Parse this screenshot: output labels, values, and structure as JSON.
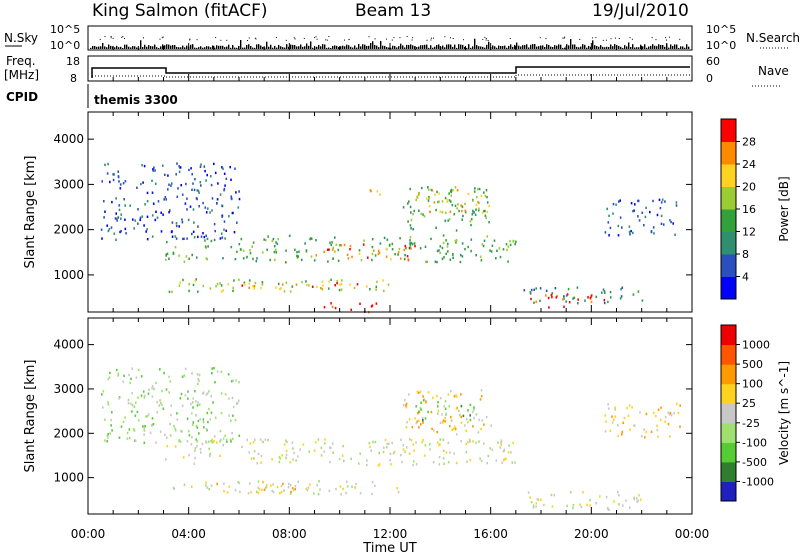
{
  "header": {
    "station": "King Salmon (fitACF)",
    "beam": "Beam 13",
    "date": "19/Jul/2010"
  },
  "top_panels": {
    "nsky_label": "N.Sky",
    "nsky_ticks_left": [
      "10^5",
      "10^0"
    ],
    "nsky_ticks_right": [
      "10^5",
      "10^0"
    ],
    "nsearch_label": "N.Search",
    "freq_label": [
      "Freq.",
      "[MHz]"
    ],
    "freq_ticks": [
      "18",
      "8"
    ],
    "nave_ticks": [
      "60",
      "0"
    ],
    "nave_label": "Nave",
    "cpid_label": "CPID",
    "cpid_value": "themis 3300",
    "colors": {
      "line": "#000000"
    }
  },
  "chart_data": [
    {
      "type": "heatmap",
      "name": "power",
      "ylabel": "Slant Range [km]",
      "xlabel": "Time UT",
      "y_ticks": [
        "1000",
        "2000",
        "3000",
        "4000"
      ],
      "ylim": [
        180,
        4600
      ],
      "xlim_hours": [
        0,
        24
      ],
      "x_ticks": [
        "00:00",
        "04:00",
        "08:00",
        "12:00",
        "16:00",
        "20:00",
        "00:00"
      ],
      "colorbar": {
        "label": "Power [dB]",
        "ticks": [
          "4",
          "8",
          "12",
          "16",
          "20",
          "24",
          "28"
        ],
        "colors": [
          "#0000ff",
          "#2a4fbf",
          "#2f8f6f",
          "#33a13a",
          "#9acd32",
          "#ffd21f",
          "#ff8a00",
          "#ff0000"
        ]
      },
      "regions": [
        {
          "t0": 3.0,
          "t1": 17.0,
          "r0": 1300,
          "r1": 1900,
          "level": 3
        },
        {
          "t0": 9.0,
          "t1": 13.0,
          "r0": 1350,
          "r1": 1700,
          "level": 6
        },
        {
          "t0": 3.2,
          "t1": 12.5,
          "r0": 650,
          "r1": 950,
          "level": 4
        },
        {
          "t0": 6.0,
          "t1": 11.0,
          "r0": 700,
          "r1": 850,
          "level": 6
        },
        {
          "t0": 9.0,
          "t1": 11.5,
          "r0": 200,
          "r1": 400,
          "level": 7
        },
        {
          "t0": 12.5,
          "t1": 16.0,
          "r0": 2000,
          "r1": 3000,
          "level": 3
        },
        {
          "t0": 13.0,
          "t1": 16.0,
          "r0": 2400,
          "r1": 2950,
          "level": 5
        },
        {
          "t0": 11.0,
          "t1": 12.0,
          "r0": 2800,
          "r1": 3000,
          "level": 6
        },
        {
          "t0": 17.0,
          "t1": 22.0,
          "r0": 400,
          "r1": 750,
          "level": 2
        },
        {
          "t0": 17.5,
          "t1": 20.5,
          "r0": 300,
          "r1": 600,
          "level": 7
        },
        {
          "t0": 0.5,
          "t1": 6.0,
          "r0": 1800,
          "r1": 3500,
          "level": 1
        },
        {
          "t0": 20.5,
          "t1": 23.5,
          "r0": 1900,
          "r1": 2700,
          "level": 1
        }
      ]
    },
    {
      "type": "heatmap",
      "name": "velocity",
      "ylabel": "Slant Range [km]",
      "xlabel": "Time UT",
      "y_ticks": [
        "1000",
        "2000",
        "3000",
        "4000"
      ],
      "ylim": [
        180,
        4600
      ],
      "xlim_hours": [
        0,
        24
      ],
      "x_ticks": [
        "00:00",
        "04:00",
        "08:00",
        "12:00",
        "16:00",
        "20:00",
        "00:00"
      ],
      "colorbar": {
        "label": "Velocity [m s^-1]",
        "ticks": [
          "1000",
          "500",
          "100",
          "25",
          "-25",
          "-100",
          "-500",
          "-1000"
        ],
        "colors": [
          "#2020c0",
          "#2f7f2f",
          "#55cc33",
          "#a0e070",
          "#c8c8c8",
          "#ffd21f",
          "#ff9900",
          "#ff5500",
          "#ee0000"
        ]
      },
      "regions": [
        {
          "t0": 3.0,
          "t1": 17.0,
          "r0": 1300,
          "r1": 1900,
          "level": 4
        },
        {
          "t0": 3.2,
          "t1": 12.5,
          "r0": 650,
          "r1": 950,
          "level": 4
        },
        {
          "t0": 5.0,
          "t1": 9.0,
          "r0": 700,
          "r1": 900,
          "level": 5
        },
        {
          "t0": 12.5,
          "t1": 16.0,
          "r0": 2000,
          "r1": 3000,
          "level": 5
        },
        {
          "t0": 13.0,
          "t1": 15.5,
          "r0": 2300,
          "r1": 2800,
          "level": 2
        },
        {
          "t0": 17.0,
          "t1": 22.0,
          "r0": 300,
          "r1": 700,
          "level": 4
        },
        {
          "t0": 0.5,
          "t1": 6.0,
          "r0": 1800,
          "r1": 3500,
          "level": 3
        },
        {
          "t0": 20.5,
          "t1": 23.5,
          "r0": 1900,
          "r1": 2700,
          "level": 5
        }
      ]
    }
  ]
}
